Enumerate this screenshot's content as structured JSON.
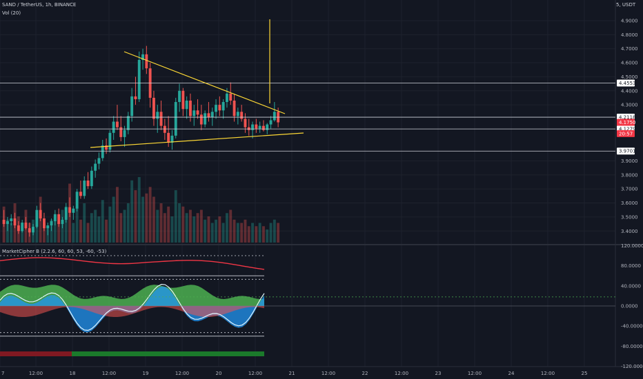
{
  "header": {
    "symbol_line": "SAND / TetherUS, 1h, BINANCE",
    "volume_line": "Vol (20)",
    "currency": "5, USDT"
  },
  "indicator": {
    "title": "MarketCipher B (2.2.6, 60, 60, 53, -60, -53)"
  },
  "price_axis": {
    "ticks": [
      "4.9000",
      "4.8000",
      "4.7000",
      "4.6000",
      "4.5000",
      "4.4000",
      "4.3000",
      "3.9000",
      "3.8000",
      "3.7000",
      "3.6000",
      "3.5000",
      "3.4000"
    ],
    "tick_values": [
      4.9,
      4.8,
      4.7,
      4.6,
      4.5,
      4.4,
      4.3,
      3.9,
      3.8,
      3.7,
      3.6,
      3.5,
      3.4
    ],
    "range": [
      3.35,
      5.0
    ]
  },
  "price_tags": [
    {
      "text": "4.4553",
      "value": 4.4553,
      "bg": "#ffffff",
      "fg": "#131722"
    },
    {
      "text": "4.2118",
      "value": 4.2118,
      "bg": "#ffffff",
      "fg": "#131722"
    },
    {
      "text": "4.1279",
      "value": 4.1279,
      "bg": "#ffffff",
      "fg": "#131722"
    },
    {
      "text": "4.1750",
      "value": 4.175,
      "bg": "#f23645",
      "fg": "#ffffff"
    },
    {
      "text": "20:57",
      "value": 4.095,
      "bg": "#f23645",
      "fg": "#ffffff"
    },
    {
      "text": "3.9701",
      "value": 3.9701,
      "bg": "#ffffff",
      "fg": "#131722"
    }
  ],
  "osc_axis": {
    "ticks": [
      "120.0000",
      "80.0000",
      "40.0000",
      "0.0000",
      "-40.0000",
      "-80.0000",
      "-120.0000"
    ],
    "tick_values": [
      120,
      80,
      40,
      0,
      -40,
      -80,
      -120
    ]
  },
  "time_axis": {
    "labels": [
      "7",
      "12:00",
      "18",
      "12:00",
      "19",
      "12:00",
      "20",
      "12:00",
      "21",
      "12:00",
      "22",
      "12:00",
      "23",
      "12:00",
      "24",
      "12:00",
      "25"
    ]
  },
  "chart_data": {
    "type": "candlestick",
    "bullish_color": "#26a69a",
    "bearish_color": "#ef5350",
    "trendline_color": "#fdd835",
    "horizontal_levels": [
      4.4553,
      4.2118,
      4.1279,
      3.9701
    ],
    "candles": [
      [
        3.48,
        3.55,
        3.43,
        3.45
      ],
      [
        3.45,
        3.5,
        3.4,
        3.47
      ],
      [
        3.47,
        3.52,
        3.44,
        3.49
      ],
      [
        3.49,
        3.53,
        3.42,
        3.44
      ],
      [
        3.44,
        3.47,
        3.38,
        3.4
      ],
      [
        3.4,
        3.48,
        3.39,
        3.46
      ],
      [
        3.46,
        3.5,
        3.41,
        3.42
      ],
      [
        3.42,
        3.46,
        3.36,
        3.39
      ],
      [
        3.39,
        3.45,
        3.37,
        3.43
      ],
      [
        3.43,
        3.58,
        3.42,
        3.55
      ],
      [
        3.55,
        3.6,
        3.47,
        3.49
      ],
      [
        3.49,
        3.53,
        3.4,
        3.42
      ],
      [
        3.42,
        3.46,
        3.37,
        3.44
      ],
      [
        3.44,
        3.49,
        3.4,
        3.47
      ],
      [
        3.47,
        3.55,
        3.44,
        3.52
      ],
      [
        3.52,
        3.56,
        3.43,
        3.45
      ],
      [
        3.45,
        3.5,
        3.42,
        3.48
      ],
      [
        3.48,
        3.6,
        3.46,
        3.57
      ],
      [
        3.57,
        3.64,
        3.5,
        3.53
      ],
      [
        3.53,
        3.58,
        3.48,
        3.56
      ],
      [
        3.56,
        3.7,
        3.54,
        3.68
      ],
      [
        3.68,
        3.76,
        3.63,
        3.65
      ],
      [
        3.65,
        3.79,
        3.63,
        3.76
      ],
      [
        3.76,
        3.82,
        3.7,
        3.72
      ],
      [
        3.72,
        3.86,
        3.7,
        3.83
      ],
      [
        3.83,
        3.91,
        3.78,
        3.88
      ],
      [
        3.88,
        3.96,
        3.84,
        3.92
      ],
      [
        3.92,
        4.05,
        3.9,
        4.01
      ],
      [
        4.01,
        4.06,
        3.95,
        3.98
      ],
      [
        3.98,
        4.12,
        3.96,
        4.1
      ],
      [
        4.1,
        4.22,
        4.05,
        4.18
      ],
      [
        4.18,
        4.3,
        4.12,
        4.14
      ],
      [
        4.14,
        4.22,
        4.04,
        4.07
      ],
      [
        4.07,
        4.15,
        4.0,
        4.12
      ],
      [
        4.12,
        4.25,
        4.09,
        4.22
      ],
      [
        4.22,
        4.42,
        4.18,
        4.36
      ],
      [
        4.36,
        4.5,
        4.3,
        4.34
      ],
      [
        4.34,
        4.68,
        4.32,
        4.62
      ],
      [
        4.62,
        4.7,
        4.55,
        4.66
      ],
      [
        4.66,
        4.72,
        4.52,
        4.56
      ],
      [
        4.56,
        4.6,
        4.28,
        4.35
      ],
      [
        4.35,
        4.4,
        4.15,
        4.2
      ],
      [
        4.2,
        4.3,
        4.1,
        4.25
      ],
      [
        4.25,
        4.33,
        4.12,
        4.15
      ],
      [
        4.15,
        4.2,
        4.05,
        4.1
      ],
      [
        4.1,
        4.22,
        4.0,
        4.03
      ],
      [
        4.03,
        4.12,
        3.98,
        4.08
      ],
      [
        4.08,
        4.35,
        4.06,
        4.32
      ],
      [
        4.32,
        4.45,
        4.25,
        4.4
      ],
      [
        4.4,
        4.42,
        4.22,
        4.27
      ],
      [
        4.27,
        4.36,
        4.2,
        4.33
      ],
      [
        4.33,
        4.38,
        4.18,
        4.22
      ],
      [
        4.22,
        4.3,
        4.15,
        4.26
      ],
      [
        4.26,
        4.34,
        4.2,
        4.23
      ],
      [
        4.23,
        4.3,
        4.12,
        4.16
      ],
      [
        4.16,
        4.26,
        4.14,
        4.24
      ],
      [
        4.24,
        4.32,
        4.18,
        4.21
      ],
      [
        4.21,
        4.28,
        4.15,
        4.25
      ],
      [
        4.25,
        4.34,
        4.2,
        4.3
      ],
      [
        4.3,
        4.36,
        4.22,
        4.26
      ],
      [
        4.26,
        4.34,
        4.2,
        4.32
      ],
      [
        4.32,
        4.42,
        4.28,
        4.38
      ],
      [
        4.38,
        4.46,
        4.3,
        4.33
      ],
      [
        4.33,
        4.38,
        4.18,
        4.22
      ],
      [
        4.22,
        4.28,
        4.16,
        4.25
      ],
      [
        4.25,
        4.3,
        4.18,
        4.2
      ],
      [
        4.2,
        4.24,
        4.1,
        4.14
      ],
      [
        4.14,
        4.2,
        4.08,
        4.12
      ],
      [
        4.12,
        4.18,
        4.06,
        4.16
      ],
      [
        4.16,
        4.2,
        4.1,
        4.13
      ],
      [
        4.13,
        4.18,
        4.1,
        4.15
      ],
      [
        4.15,
        4.19,
        4.11,
        4.12
      ],
      [
        4.12,
        4.17,
        4.09,
        4.16
      ],
      [
        4.16,
        4.22,
        4.13,
        4.19
      ],
      [
        4.19,
        4.32,
        4.18,
        4.25
      ],
      [
        4.25,
        4.28,
        4.14,
        4.175
      ]
    ],
    "volumes": [
      0.55,
      0.35,
      0.3,
      0.6,
      0.4,
      0.25,
      0.5,
      0.3,
      0.35,
      0.45,
      0.7,
      0.3,
      0.25,
      0.35,
      0.4,
      0.3,
      0.5,
      0.55,
      0.9,
      0.3,
      0.55,
      0.35,
      0.6,
      0.3,
      0.45,
      0.5,
      0.4,
      0.65,
      0.35,
      0.55,
      0.7,
      0.85,
      0.45,
      0.5,
      0.6,
      0.95,
      0.8,
      1.0,
      0.7,
      0.75,
      0.85,
      0.7,
      0.5,
      0.6,
      0.45,
      0.55,
      0.4,
      0.8,
      0.6,
      0.55,
      0.45,
      0.5,
      0.4,
      0.45,
      0.5,
      0.35,
      0.4,
      0.3,
      0.35,
      0.4,
      0.3,
      0.45,
      0.5,
      0.35,
      0.3,
      0.3,
      0.35,
      0.25,
      0.3,
      0.25,
      0.3,
      0.25,
      0.2,
      0.3,
      0.35,
      0.3
    ]
  }
}
